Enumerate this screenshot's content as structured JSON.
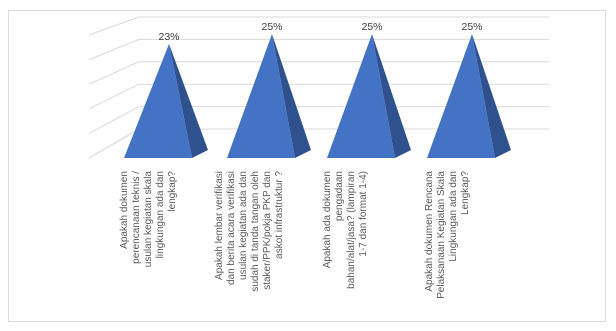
{
  "chart_data": {
    "type": "bar",
    "shape": "pyramid",
    "three_d": true,
    "categories": [
      "Apakah dokumen perencanaan teknis / usulan kegiatan skala lingkungan ada dan lengkap?",
      "Apakah lembar verifikasi dan berita acara verifikasi usulan kegiatan ada dan sudah di tanda tangan oleh staker/PPK/pokja PKP dan askot infrastruktur ?",
      "Apakah ada dokumen pengadaan bahan/alat/jasa? (lampiran 1-7 dan format 1-4)",
      "Apakah dokumen Rencana Pelaksanaan Kegiatan Skala Lingkungan ada dan Lengkap?"
    ],
    "category_lines": [
      [
        "Apakah dokumen",
        "perencanaan teknis /",
        "usulan kegiatan skala",
        "lingkungan ada dan",
        "lengkap?"
      ],
      [
        "Apakah lembar verifikasi",
        "dan berita acara verifikasi",
        "usulan kegiatan ada dan",
        "sudah di tanda tangan oleh",
        "staker/PPK/pokja PKP dan",
        "askot infrastruktur ?"
      ],
      [
        "Apakah ada dokumen",
        "pengadaan",
        "bahan/alat/jasa? (lampiran",
        "1-7 dan format 1-4)"
      ],
      [
        "Apakah dokumen Rencana",
        "Pelaksanaan Kegiatan Skala",
        "Lingkungan ada dan",
        "Lengkap?"
      ]
    ],
    "values": [
      23,
      25,
      25,
      25
    ],
    "data_labels": [
      "23%",
      "25%",
      "25%",
      "25%"
    ],
    "ylim": [
      0,
      25
    ],
    "gridlines": true,
    "legend": "none",
    "colors": {
      "front": "#4472c4",
      "side": "#2f528f",
      "grid": "#d9d9d9",
      "label": "#595959"
    }
  }
}
